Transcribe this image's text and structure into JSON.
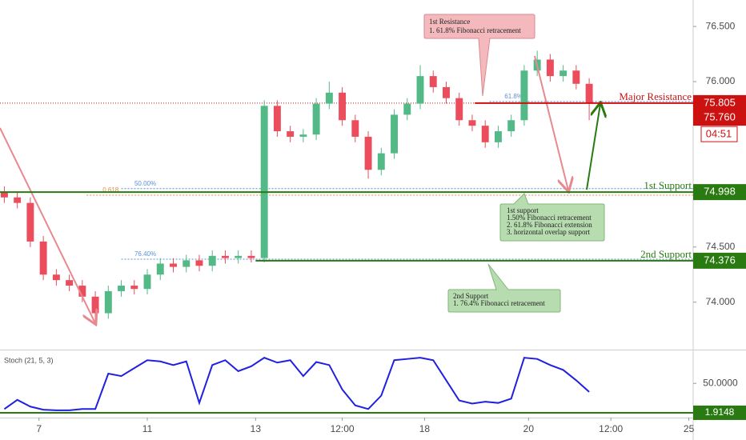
{
  "chart_data": {
    "type": "candlestick",
    "x": [
      1,
      4,
      7,
      10,
      13,
      16,
      19,
      22,
      25,
      28,
      31,
      34,
      37,
      40,
      43,
      46,
      49,
      52,
      55,
      58,
      61,
      64,
      67,
      70,
      73,
      76,
      79,
      82,
      85,
      88,
      91,
      94,
      97,
      100,
      103,
      106,
      109,
      112,
      115,
      118,
      121,
      124,
      127,
      130,
      133,
      136
    ],
    "open": [
      75.0,
      74.95,
      74.9,
      74.55,
      74.25,
      74.2,
      74.15,
      74.05,
      73.9,
      74.1,
      74.15,
      74.12,
      74.25,
      74.35,
      74.32,
      74.38,
      74.33,
      74.42,
      74.4,
      74.42,
      74.4,
      75.78,
      75.55,
      75.5,
      75.52,
      75.8,
      75.9,
      75.65,
      75.5,
      75.2,
      75.35,
      75.7,
      75.8,
      76.05,
      75.95,
      75.85,
      75.65,
      75.6,
      75.45,
      75.55,
      75.65,
      76.1,
      76.2,
      76.05,
      76.1,
      75.98
    ],
    "high": [
      75.05,
      75.0,
      74.95,
      74.6,
      74.3,
      74.25,
      74.2,
      74.1,
      74.15,
      74.2,
      74.2,
      74.3,
      74.4,
      74.4,
      74.43,
      74.43,
      74.47,
      74.47,
      74.47,
      74.47,
      75.83,
      75.83,
      75.6,
      75.57,
      75.85,
      76.0,
      75.95,
      75.7,
      75.55,
      75.4,
      75.75,
      75.85,
      76.15,
      76.1,
      76.0,
      75.9,
      75.7,
      75.65,
      75.6,
      75.7,
      76.15,
      76.28,
      76.25,
      76.15,
      76.15,
      76.03
    ],
    "low": [
      74.9,
      74.85,
      74.5,
      74.2,
      74.15,
      74.1,
      74.0,
      73.82,
      73.85,
      74.05,
      74.07,
      74.07,
      74.2,
      74.27,
      74.27,
      74.28,
      74.28,
      74.35,
      74.35,
      74.36,
      74.36,
      75.5,
      75.45,
      75.45,
      75.47,
      75.75,
      75.6,
      75.45,
      75.12,
      75.15,
      75.3,
      75.65,
      75.75,
      75.9,
      75.8,
      75.6,
      75.55,
      75.4,
      75.4,
      75.5,
      75.6,
      76.05,
      76.0,
      76.0,
      75.93,
      75.65
    ],
    "close": [
      74.95,
      74.9,
      74.55,
      74.25,
      74.2,
      74.15,
      74.05,
      73.9,
      74.1,
      74.15,
      74.12,
      74.25,
      74.35,
      74.32,
      74.38,
      74.33,
      74.42,
      74.4,
      74.42,
      74.4,
      75.78,
      75.55,
      75.5,
      75.52,
      75.8,
      75.9,
      75.65,
      75.5,
      75.2,
      75.35,
      75.7,
      75.8,
      76.05,
      75.95,
      75.85,
      75.65,
      75.6,
      75.45,
      75.55,
      75.65,
      76.1,
      76.2,
      76.05,
      76.1,
      75.98,
      75.805
    ],
    "up_color": "#53b987",
    "down_color": "#eb4d5c",
    "xlim": [
      0,
      160
    ],
    "xticks": [
      {
        "value": 9,
        "label": "7"
      },
      {
        "value": 34,
        "label": "11"
      },
      {
        "value": 59,
        "label": "13"
      },
      {
        "value": 79,
        "label": "12:00"
      },
      {
        "value": 98,
        "label": "18"
      },
      {
        "value": 122,
        "label": "20"
      },
      {
        "value": 141,
        "label": "12:00"
      },
      {
        "value": 159,
        "label": "25"
      }
    ],
    "ylim": [
      73.57,
      76.74
    ],
    "yticks": [
      {
        "value": 76.5,
        "label": "76.500"
      },
      {
        "value": 76,
        "label": "76.000"
      },
      {
        "value": 74.5,
        "label": "74.500"
      },
      {
        "value": 74,
        "label": "74.000"
      }
    ],
    "levels": [
      {
        "name": "Major Resistance",
        "value": 75.805,
        "color": "#cc1111",
        "x_from": 109.6
      },
      {
        "name": "1st Support",
        "value": 74.998,
        "color": "#2a7a12",
        "x_from": 0
      },
      {
        "name": "2nd Support",
        "value": 74.376,
        "color": "#2a7a12",
        "x_from": 59
      }
    ],
    "ask_tag": {
      "value": 75.76,
      "label": "75.760",
      "color": "#cc1111"
    },
    "countdown": "04:51",
    "fibs": [
      {
        "label": "50.00%",
        "value": 75.03,
        "x_from": 28,
        "color": "#5b8fd6"
      },
      {
        "label": "0.618",
        "value": 74.97,
        "x_from": 20,
        "color": "#e0894a"
      },
      {
        "label": "76.40%",
        "value": 74.39,
        "x_from": 28,
        "color": "#5b8fd6"
      },
      {
        "label": "61.8%",
        "value": 75.82,
        "x_from": 113,
        "color": "#5b8fd6"
      }
    ],
    "annotations": {
      "resistance": [
        "1st Resistance",
        "1.  61.8% Fibonacci retracement"
      ],
      "support1": [
        "1st support",
        "1.50% Fibonacci retracement",
        "2. 61.8% Fibonacci extension",
        "3. horizontal overlap support"
      ],
      "support2": [
        "2nd Support",
        "1. 76.4% Fibonacci retracement"
      ]
    },
    "stoch": {
      "title": "Stoch (21, 5, 3)",
      "color": "#2020e0",
      "values": [
        8,
        23,
        12,
        7,
        6,
        6,
        8,
        8,
        66,
        62,
        75,
        88,
        86,
        80,
        86,
        18,
        80,
        88,
        70,
        78,
        92,
        84,
        88,
        62,
        85,
        80,
        40,
        14,
        8,
        30,
        88,
        90,
        92,
        88,
        55,
        22,
        17,
        20,
        18,
        25,
        92,
        90,
        80,
        72,
        55,
        36
      ],
      "ylim": [
        -6,
        104
      ],
      "yticks": [
        {
          "value": 50,
          "label": "50.0000"
        }
      ],
      "level": {
        "value": 1.9148,
        "color": "#2a7a12"
      }
    }
  }
}
